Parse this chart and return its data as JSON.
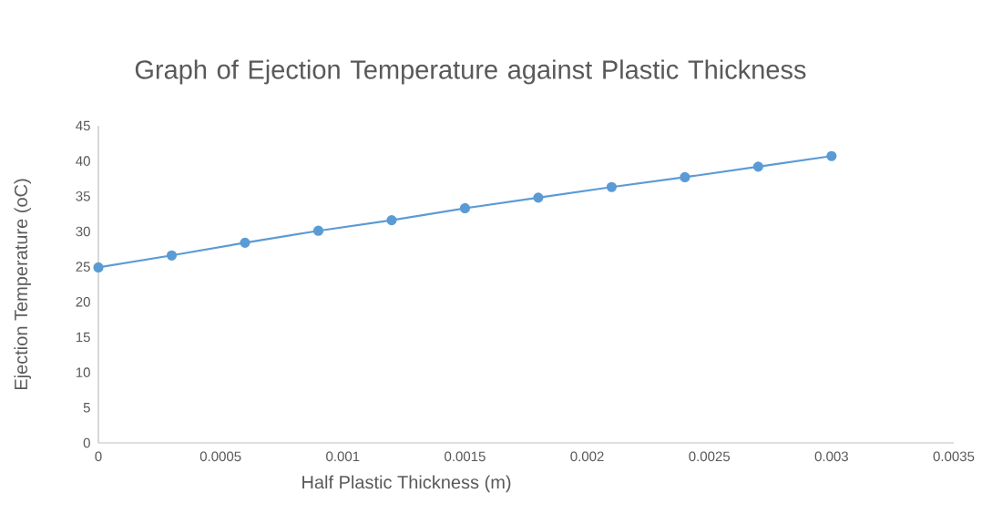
{
  "chart_data": {
    "type": "line",
    "title": "Graph of Ejection Temperature against Plastic Thickness",
    "xlabel": "Half Plastic Thickness (m)",
    "ylabel": "Ejection Temperature (oC)",
    "x": [
      0,
      0.0003,
      0.0006,
      0.0009,
      0.0012,
      0.0015,
      0.0018,
      0.0021,
      0.0024,
      0.0027,
      0.003
    ],
    "series": [
      {
        "color": "#5b9bd5",
        "values": [
          24.9,
          26.6,
          28.4,
          30.1,
          31.6,
          33.3,
          34.8,
          36.3,
          37.7,
          39.2,
          40.7
        ]
      }
    ],
    "xlim": [
      0,
      0.0035
    ],
    "ylim": [
      0,
      45
    ],
    "xticks": [
      0,
      0.0005,
      0.001,
      0.0015,
      0.002,
      0.0025,
      0.003,
      0.0035
    ],
    "yticks": [
      0,
      5,
      10,
      15,
      20,
      25,
      30,
      35,
      40,
      45
    ],
    "marker": "circle",
    "line_style": "solid",
    "grid": false
  }
}
